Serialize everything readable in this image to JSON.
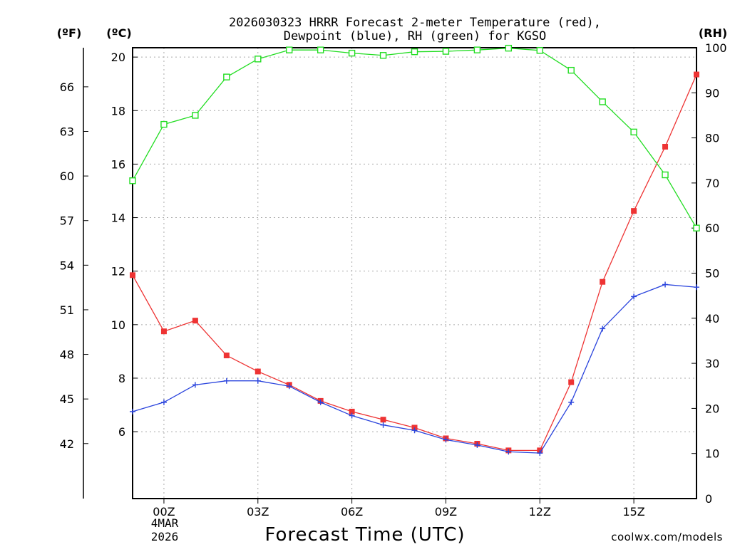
{
  "chart_data": {
    "type": "line",
    "title_line1": "2026030323 HRRR Forecast 2-meter Temperature (red),",
    "title_line2": "Dewpoint (blue), RH (green) for KGSO",
    "xlabel": "Forecast Time (UTC)",
    "x_ticks": [
      "00Z",
      "03Z",
      "06Z",
      "09Z",
      "12Z",
      "15Z"
    ],
    "x_tick_hours": [
      1,
      4,
      7,
      10,
      13,
      16
    ],
    "date_label_line1": "4MAR",
    "date_label_line2": "2026",
    "xlim": [
      0,
      18
    ],
    "left_axis_unit": "(ºF)",
    "celsius_axis_unit": "(ºC)",
    "right_axis_unit": "(RH)",
    "celsius_ylim": [
      3.5,
      20.35
    ],
    "celsius_ticks": [
      "6",
      "8",
      "10",
      "12",
      "14",
      "16",
      "18",
      "20"
    ],
    "fahrenheit_ticks": [
      "42",
      "45",
      "48",
      "51",
      "54",
      "57",
      "60",
      "63",
      "66"
    ],
    "rh_ylim": [
      0,
      100
    ],
    "rh_ticks": [
      "0",
      "10",
      "20",
      "30",
      "40",
      "50",
      "60",
      "70",
      "80",
      "90",
      "100"
    ],
    "grid": true,
    "credit": "coolwx.com/models",
    "colors": {
      "temperature": "#ee3333",
      "dewpoint": "#2a44dd",
      "rh": "#22dd22",
      "credit": "#dd3333",
      "grid": "#aaaaaa"
    },
    "series": [
      {
        "name": "2-meter Temperature (°C)",
        "axis": "celsius",
        "marker": "square",
        "x": [
          0,
          1,
          2,
          3,
          4,
          5,
          6,
          7,
          8,
          9,
          10,
          11,
          12,
          13,
          14,
          15,
          16,
          17,
          18
        ],
        "values": [
          11.85,
          9.75,
          10.15,
          8.85,
          8.25,
          7.75,
          7.15,
          6.75,
          6.45,
          6.15,
          5.75,
          5.55,
          5.3,
          5.3,
          7.85,
          11.6,
          14.25,
          16.65,
          19.35
        ]
      },
      {
        "name": "Dewpoint (°C)",
        "axis": "celsius",
        "marker": "plus",
        "x": [
          0,
          1,
          2,
          3,
          4,
          5,
          6,
          7,
          8,
          9,
          10,
          11,
          12,
          13,
          14,
          15,
          16,
          17,
          18
        ],
        "values": [
          6.75,
          7.1,
          7.75,
          7.9,
          7.9,
          7.7,
          7.1,
          6.6,
          6.25,
          6.05,
          5.7,
          5.5,
          5.25,
          5.2,
          7.1,
          9.85,
          11.05,
          11.5,
          11.4
        ]
      },
      {
        "name": "Relative Humidity (%)",
        "axis": "rh",
        "marker": "open-square",
        "x": [
          0,
          1,
          2,
          3,
          4,
          5,
          6,
          7,
          8,
          9,
          10,
          11,
          12,
          13,
          14,
          15,
          16,
          17,
          18
        ],
        "values": [
          70.5,
          83,
          85,
          93.5,
          97.5,
          99.5,
          99.5,
          98.8,
          98.3,
          99.1,
          99.2,
          99.5,
          99.9,
          99.4,
          95,
          88,
          81.3,
          71.8,
          60
        ]
      }
    ]
  }
}
